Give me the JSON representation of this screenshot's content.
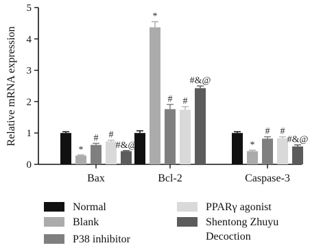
{
  "chart_data": {
    "type": "bar",
    "ylabel": "Relative mRNA expression",
    "xlabel": "",
    "ylim": [
      0,
      5
    ],
    "yticks": [
      0,
      1,
      2,
      3,
      4,
      5
    ],
    "grid": false,
    "legend_position": "bottom",
    "categories": [
      "Bax",
      "Bcl-2",
      "Caspase-3"
    ],
    "series": [
      {
        "name": "Normal",
        "color": "#111111",
        "values": [
          1.0,
          1.0,
          1.0
        ],
        "errors": [
          0.04,
          0.07,
          0.04
        ],
        "labels": [
          "",
          "",
          ""
        ]
      },
      {
        "name": "Blank",
        "color": "#ababab",
        "values": [
          0.28,
          4.37,
          0.42
        ],
        "errors": [
          0.02,
          0.18,
          0.03
        ],
        "labels": [
          "*",
          "*",
          "*"
        ]
      },
      {
        "name": "P38 inhibitor",
        "color": "#7f7f7f",
        "values": [
          0.62,
          1.76,
          0.82
        ],
        "errors": [
          0.05,
          0.15,
          0.06
        ],
        "labels": [
          "#",
          "#",
          "#"
        ]
      },
      {
        "name": "PPARγ agonist",
        "color": "#d9d9d9",
        "values": [
          0.73,
          1.74,
          0.83
        ],
        "errors": [
          0.04,
          0.1,
          0.05
        ],
        "labels": [
          "#",
          "#",
          "#"
        ]
      },
      {
        "name": "Shentong Zhuyu\nDecoction",
        "color": "#5c5c5c",
        "values": [
          0.42,
          2.43,
          0.57
        ],
        "errors": [
          0.02,
          0.07,
          0.05
        ],
        "labels": [
          "#&@",
          "#&@",
          "#&@"
        ]
      }
    ]
  }
}
